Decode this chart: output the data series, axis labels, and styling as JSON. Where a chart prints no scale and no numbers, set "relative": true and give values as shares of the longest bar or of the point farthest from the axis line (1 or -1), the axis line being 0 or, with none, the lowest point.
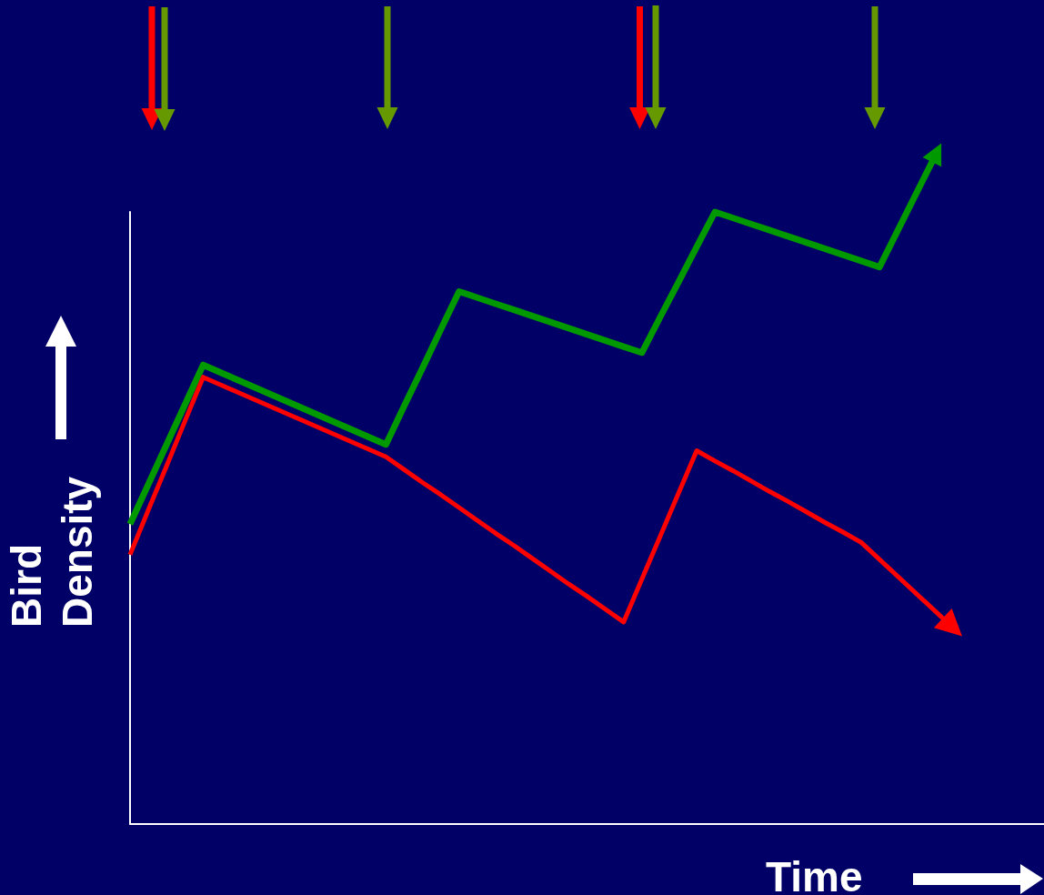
{
  "chart_data": {
    "type": "line",
    "relative": true,
    "xlabel": "Time",
    "ylabel": "Bird Density",
    "tick_labels": false,
    "categories": [
      null,
      null,
      null,
      null,
      null,
      null,
      null,
      null,
      null,
      null,
      null,
      null,
      null,
      null,
      null,
      null,
      null,
      null,
      null,
      null,
      null,
      null,
      null,
      null,
      null,
      null,
      null,
      null,
      null,
      null,
      null,
      null,
      null,
      null,
      null,
      null,
      null,
      null,
      null,
      null,
      null,
      null,
      null,
      null,
      null,
      null,
      null,
      null,
      null,
      null,
      null
    ],
    "series": [
      {
        "color": "#009900",
        "values": [
          0.49,
          0.555,
          0.62,
          0.685,
          0.75,
          0.737,
          0.724,
          0.711,
          0.698,
          0.685,
          0.672,
          0.659,
          0.646,
          0.633,
          0.62,
          0.683,
          0.745,
          0.808,
          0.87,
          0.86,
          0.85,
          0.84,
          0.83,
          0.82,
          0.81,
          0.8,
          0.79,
          0.78,
          0.77,
          0.828,
          0.885,
          0.943,
          1.0,
          0.99,
          0.98,
          0.97,
          0.96,
          0.95,
          0.94,
          0.93,
          0.92,
          0.91,
          null,
          null,
          null,
          null,
          null,
          null,
          null,
          null,
          null
        ]
      },
      {
        "color": "#ff0000",
        "values": [
          0.44,
          0.513,
          0.585,
          0.658,
          0.73,
          0.717,
          0.704,
          0.691,
          0.678,
          0.665,
          0.652,
          0.639,
          0.626,
          0.613,
          0.6,
          0.579,
          0.558,
          0.538,
          0.517,
          0.496,
          0.475,
          0.455,
          0.434,
          0.413,
          0.392,
          0.372,
          0.351,
          0.33,
          0.4,
          0.47,
          0.54,
          0.61,
          0.593,
          0.577,
          0.56,
          0.543,
          0.527,
          0.51,
          0.493,
          0.477,
          0.46,
          null,
          null,
          null,
          null,
          null,
          null,
          null,
          null,
          null,
          null
        ]
      }
    ]
  }
}
